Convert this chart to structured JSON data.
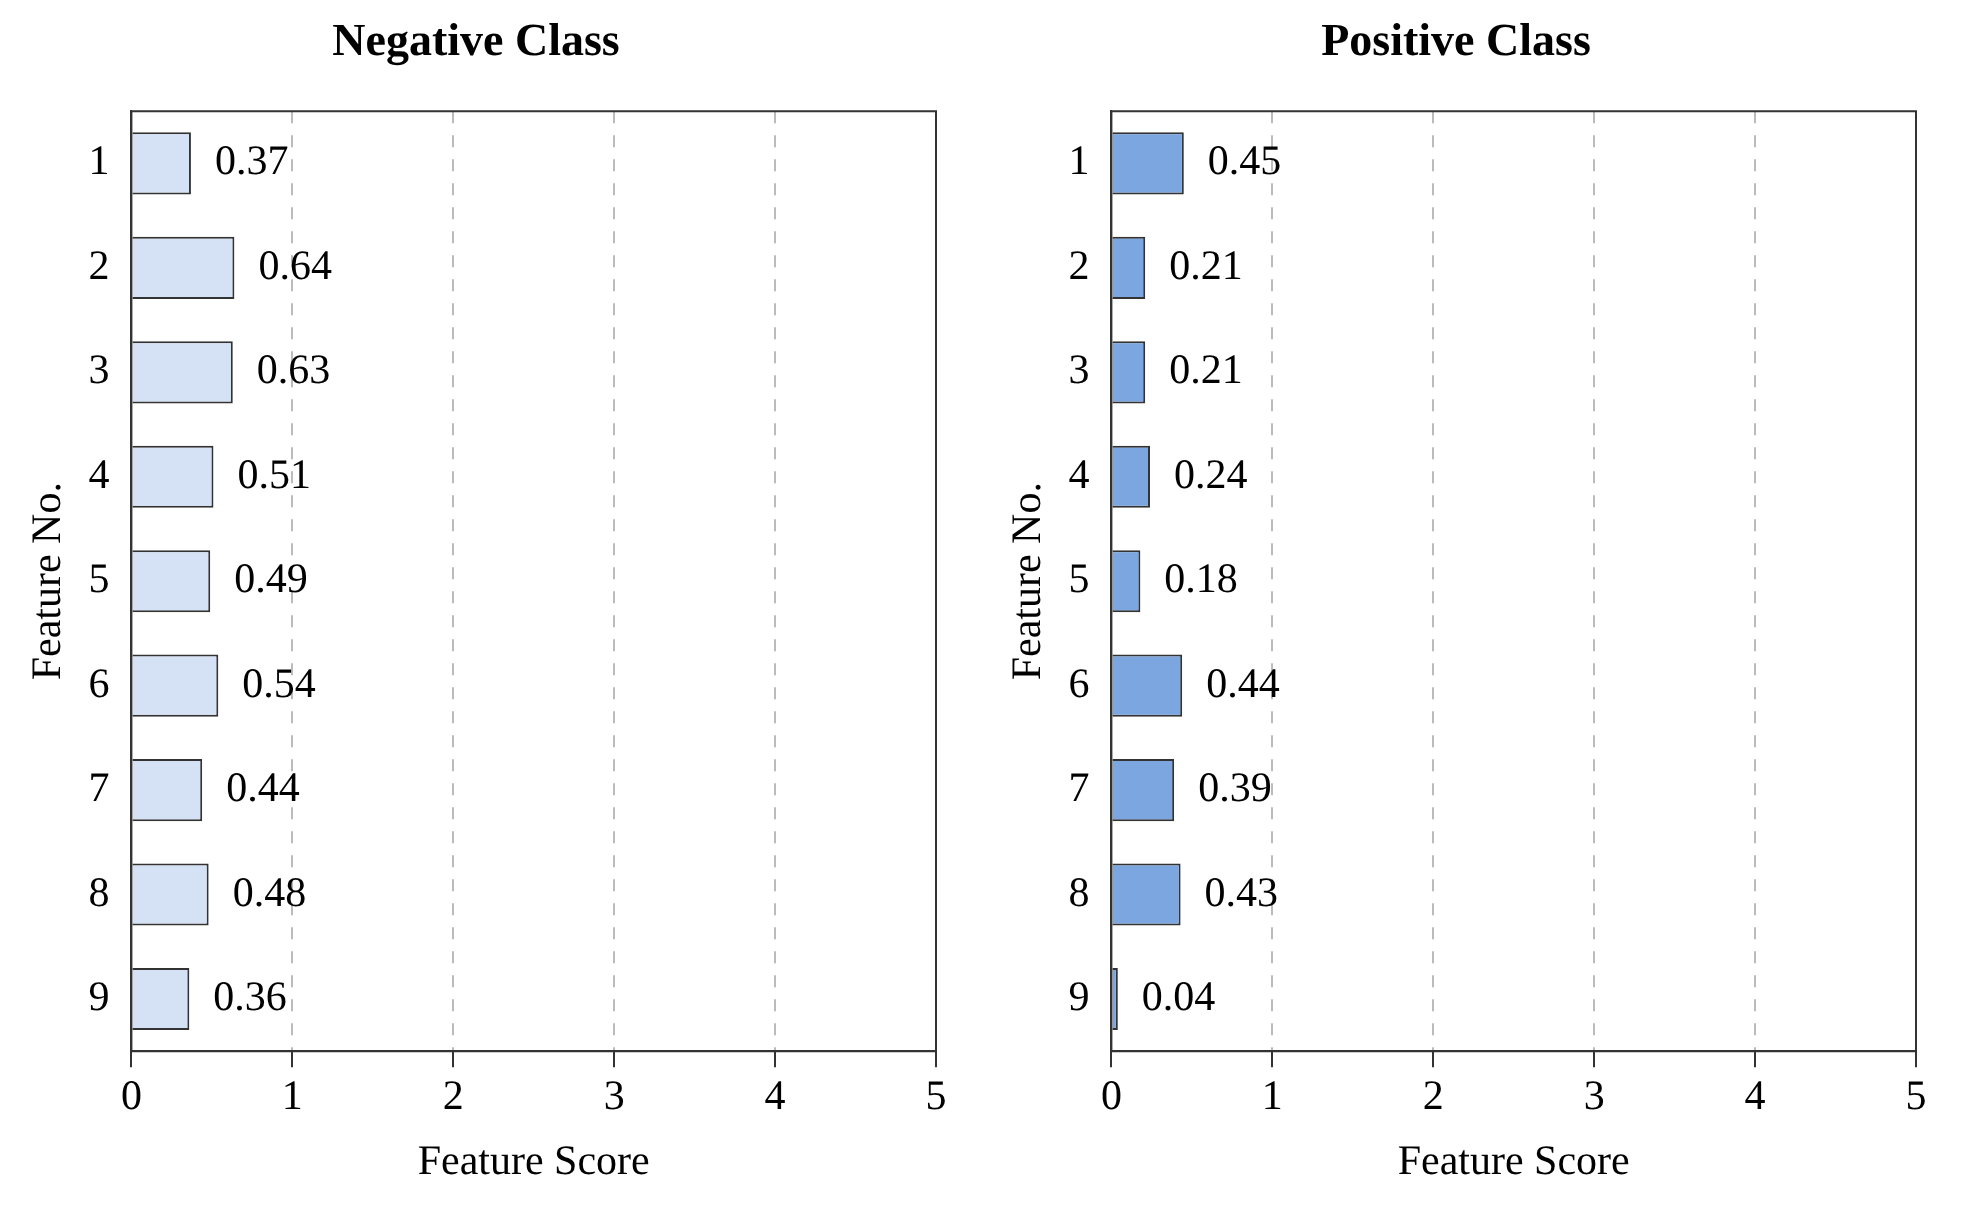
{
  "chart_data": [
    {
      "type": "bar",
      "orientation": "horizontal",
      "title": "Negative Class",
      "xlabel": "Feature Score",
      "ylabel": "Feature No.",
      "categories": [
        "1",
        "2",
        "3",
        "4",
        "5",
        "6",
        "7",
        "8",
        "9"
      ],
      "values": [
        0.37,
        0.64,
        0.63,
        0.51,
        0.49,
        0.54,
        0.44,
        0.48,
        0.36
      ],
      "color": "#d5e2f5",
      "xlim": [
        0,
        5
      ],
      "xticks": [
        0,
        1,
        2,
        3,
        4,
        5
      ],
      "grid": "x",
      "data_labels": true
    },
    {
      "type": "bar",
      "orientation": "horizontal",
      "title": "Positive Class",
      "xlabel": "Feature Score",
      "ylabel": "Feature No.",
      "categories": [
        "1",
        "2",
        "3",
        "4",
        "5",
        "6",
        "7",
        "8",
        "9"
      ],
      "values": [
        0.45,
        0.21,
        0.21,
        0.24,
        0.18,
        0.44,
        0.39,
        0.43,
        0.04
      ],
      "color": "#7ba6e0",
      "xlim": [
        0,
        5
      ],
      "xticks": [
        0,
        1,
        2,
        3,
        4,
        5
      ],
      "grid": "x",
      "data_labels": true
    }
  ]
}
